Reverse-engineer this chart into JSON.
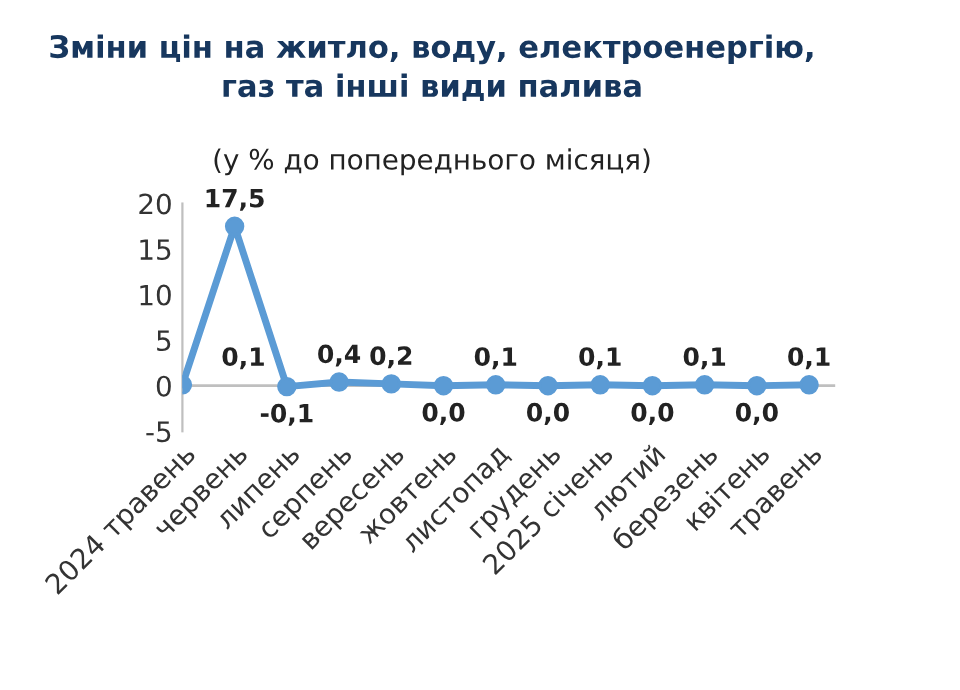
{
  "chart_data": {
    "type": "line",
    "title": "Зміни цін на житло, воду, електроенергію,\nгаз та інші види палива",
    "subtitle": "(у % до попереднього місяця)",
    "categories": [
      "2024 травень",
      "червень",
      "липень",
      "серпень",
      "вересень",
      "жовтень",
      "листопад",
      "грудень",
      "2025 січень",
      "лютий",
      "березень",
      "квітень",
      "травень"
    ],
    "series": [
      {
        "color": "#5b9bd5",
        "values": [
          0.1,
          17.5,
          -0.1,
          0.4,
          0.2,
          0.0,
          0.1,
          0.0,
          0.1,
          0.0,
          0.1,
          0.0,
          0.1
        ],
        "value_labels": [
          "0,1",
          "17,5",
          "-0,1",
          "0,4",
          "0,2",
          "0,0",
          "0,1",
          "0,0",
          "0,1",
          "0,0",
          "0,1",
          "0,0",
          "0,1"
        ]
      }
    ],
    "ylim": [
      -5,
      20
    ],
    "yticks": [
      -5,
      0,
      5,
      10,
      15,
      20
    ],
    "grid": false,
    "legend": false,
    "marker": "circle",
    "line_style": "solid"
  }
}
